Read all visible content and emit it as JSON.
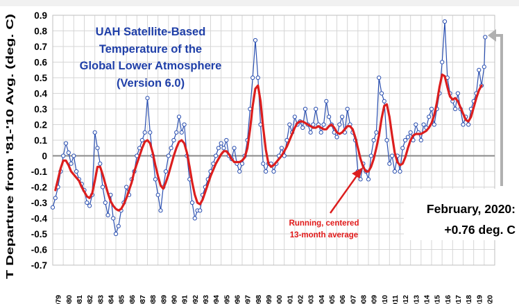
{
  "chart_data": {
    "type": "line",
    "title_lines": [
      "UAH Satellite-Based",
      "Temperature of the",
      "Global Lower Atmosphere",
      "(Version 6.0)"
    ],
    "ylabel": "T Departure from '81-'10 Avg. (deg. C)",
    "xlabel": "",
    "ylim": [
      -0.7,
      0.9
    ],
    "y_ticks": [
      "0.9",
      "0.8",
      "0.7",
      "0.6",
      "0.5",
      "0.4",
      "0.3",
      "0.2",
      "0.1",
      "0",
      "-0.1",
      "-0.2",
      "-0.3",
      "-0.4",
      "-0.5",
      "-0.6",
      "-0.7"
    ],
    "y_tick_values": [
      0.9,
      0.8,
      0.7,
      0.6,
      0.5,
      0.4,
      0.3,
      0.2,
      0.1,
      0,
      -0.1,
      -0.2,
      -0.3,
      -0.4,
      -0.5,
      -0.6,
      -0.7
    ],
    "x_ticks": [
      "1979",
      "1980",
      "1981",
      "1982",
      "1983",
      "1984",
      "1985",
      "1986",
      "1987",
      "1988",
      "1989",
      "1990",
      "1991",
      "1992",
      "1993",
      "1994",
      "1995",
      "1996",
      "1997",
      "1998",
      "1999",
      "2000",
      "2001",
      "2002",
      "2003",
      "2004",
      "2005",
      "2006",
      "2007",
      "2008",
      "2009",
      "2010",
      "2011",
      "2012",
      "2013",
      "2014",
      "2015",
      "2016",
      "2017",
      "2018",
      "2019",
      "2020"
    ],
    "x_range": [
      1979.0,
      2021.0
    ],
    "grid": true,
    "monthly_series": {
      "color": "#2a4fb0",
      "x": [
        1979.0,
        1979.25,
        1979.5,
        1979.75,
        1980.0,
        1980.25,
        1980.5,
        1980.75,
        1981.0,
        1981.25,
        1981.5,
        1981.75,
        1982.0,
        1982.25,
        1982.5,
        1982.75,
        1983.0,
        1983.25,
        1983.5,
        1983.75,
        1984.0,
        1984.25,
        1984.5,
        1984.75,
        1985.0,
        1985.25,
        1985.5,
        1985.75,
        1986.0,
        1986.25,
        1986.5,
        1986.75,
        1987.0,
        1987.25,
        1987.5,
        1987.75,
        1988.0,
        1988.25,
        1988.5,
        1988.75,
        1989.0,
        1989.25,
        1989.5,
        1989.75,
        1990.0,
        1990.25,
        1990.5,
        1990.75,
        1991.0,
        1991.25,
        1991.5,
        1991.75,
        1992.0,
        1992.25,
        1992.5,
        1992.75,
        1993.0,
        1993.25,
        1993.5,
        1993.75,
        1994.0,
        1994.25,
        1994.5,
        1994.75,
        1995.0,
        1995.25,
        1995.5,
        1995.75,
        1996.0,
        1996.25,
        1996.5,
        1996.75,
        1997.0,
        1997.25,
        1997.5,
        1997.75,
        1998.0,
        1998.25,
        1998.5,
        1998.75,
        1999.0,
        1999.25,
        1999.5,
        1999.75,
        2000.0,
        2000.25,
        2000.5,
        2000.75,
        2001.0,
        2001.25,
        2001.5,
        2001.75,
        2002.0,
        2002.25,
        2002.5,
        2002.75,
        2003.0,
        2003.25,
        2003.5,
        2003.75,
        2004.0,
        2004.25,
        2004.5,
        2004.75,
        2005.0,
        2005.25,
        2005.5,
        2005.75,
        2006.0,
        2006.25,
        2006.5,
        2006.75,
        2007.0,
        2007.25,
        2007.5,
        2007.75,
        2008.0,
        2008.25,
        2008.5,
        2008.75,
        2009.0,
        2009.25,
        2009.5,
        2009.75,
        2010.0,
        2010.25,
        2010.5,
        2010.75,
        2011.0,
        2011.25,
        2011.5,
        2011.75,
        2012.0,
        2012.25,
        2012.5,
        2012.75,
        2013.0,
        2013.25,
        2013.5,
        2013.75,
        2014.0,
        2014.25,
        2014.5,
        2014.75,
        2015.0,
        2015.25,
        2015.5,
        2015.75,
        2016.0,
        2016.25,
        2016.5,
        2016.75,
        2017.0,
        2017.25,
        2017.5,
        2017.75,
        2018.0,
        2018.25,
        2018.5,
        2018.75,
        2019.0,
        2019.25,
        2019.5,
        2019.75,
        2020.0,
        2020.1
      ],
      "values": [
        -0.33,
        -0.27,
        -0.2,
        -0.1,
        0.0,
        0.08,
        0.02,
        -0.05,
        0.0,
        -0.1,
        -0.15,
        -0.18,
        -0.22,
        -0.3,
        -0.32,
        -0.25,
        0.15,
        0.05,
        -0.05,
        -0.2,
        -0.3,
        -0.38,
        -0.25,
        -0.4,
        -0.5,
        -0.45,
        -0.35,
        -0.3,
        -0.2,
        -0.25,
        -0.15,
        -0.1,
        0.0,
        0.05,
        0.1,
        0.15,
        0.37,
        0.15,
        0.0,
        -0.15,
        -0.25,
        -0.35,
        -0.2,
        -0.1,
        0.0,
        0.05,
        0.1,
        0.15,
        0.25,
        0.15,
        0.2,
        0.0,
        -0.15,
        -0.3,
        -0.4,
        -0.35,
        -0.35,
        -0.25,
        -0.2,
        -0.15,
        -0.1,
        -0.05,
        0.0,
        0.05,
        0.08,
        0.05,
        0.1,
        0.0,
        -0.02,
        0.05,
        -0.05,
        -0.1,
        -0.05,
        0.0,
        0.1,
        0.3,
        0.5,
        0.74,
        0.5,
        0.2,
        -0.05,
        -0.1,
        -0.05,
        -0.05,
        -0.1,
        -0.05,
        0.0,
        0.05,
        0.0,
        0.1,
        0.2,
        0.15,
        0.25,
        0.2,
        0.22,
        0.18,
        0.3,
        0.2,
        0.15,
        0.2,
        0.3,
        0.2,
        0.15,
        0.2,
        0.35,
        0.25,
        0.2,
        0.15,
        0.12,
        0.2,
        0.25,
        0.15,
        0.3,
        0.2,
        0.15,
        0.1,
        -0.1,
        -0.15,
        -0.05,
        -0.1,
        -0.15,
        0.0,
        0.1,
        0.15,
        0.5,
        0.4,
        0.35,
        0.1,
        -0.05,
        0.0,
        -0.1,
        0.0,
        -0.1,
        0.05,
        0.1,
        0.12,
        0.15,
        0.1,
        0.2,
        0.15,
        0.1,
        0.2,
        0.18,
        0.25,
        0.3,
        0.2,
        0.3,
        0.4,
        0.6,
        0.86,
        0.5,
        0.4,
        0.35,
        0.3,
        0.4,
        0.3,
        0.2,
        0.25,
        0.2,
        0.3,
        0.35,
        0.4,
        0.55,
        0.45,
        0.57,
        0.76
      ]
    },
    "running_average": {
      "name": "Running, centered 13-month average",
      "color": "#dc1e1e",
      "x": [
        1979.25,
        1979.5,
        1979.75,
        1980.0,
        1980.25,
        1980.5,
        1980.75,
        1981.0,
        1981.25,
        1981.5,
        1981.75,
        1982.0,
        1982.25,
        1982.5,
        1982.75,
        1983.0,
        1983.25,
        1983.5,
        1983.75,
        1984.0,
        1984.25,
        1984.5,
        1984.75,
        1985.0,
        1985.25,
        1985.5,
        1985.75,
        1986.0,
        1986.25,
        1986.5,
        1986.75,
        1987.0,
        1987.25,
        1987.5,
        1987.75,
        1988.0,
        1988.25,
        1988.5,
        1988.75,
        1989.0,
        1989.25,
        1989.5,
        1989.75,
        1990.0,
        1990.25,
        1990.5,
        1990.75,
        1991.0,
        1991.25,
        1991.5,
        1991.75,
        1992.0,
        1992.25,
        1992.5,
        1992.75,
        1993.0,
        1993.25,
        1993.5,
        1993.75,
        1994.0,
        1994.25,
        1994.5,
        1994.75,
        1995.0,
        1995.25,
        1995.5,
        1995.75,
        1996.0,
        1996.25,
        1996.5,
        1996.75,
        1997.0,
        1997.25,
        1997.5,
        1997.75,
        1998.0,
        1998.25,
        1998.5,
        1998.75,
        1999.0,
        1999.25,
        1999.5,
        1999.75,
        2000.0,
        2000.25,
        2000.5,
        2000.75,
        2001.0,
        2001.25,
        2001.5,
        2001.75,
        2002.0,
        2002.25,
        2002.5,
        2002.75,
        2003.0,
        2003.25,
        2003.5,
        2003.75,
        2004.0,
        2004.25,
        2004.5,
        2004.75,
        2005.0,
        2005.25,
        2005.5,
        2005.75,
        2006.0,
        2006.25,
        2006.5,
        2006.75,
        2007.0,
        2007.25,
        2007.5,
        2007.75,
        2008.0,
        2008.25,
        2008.5,
        2008.75,
        2009.0,
        2009.25,
        2009.5,
        2009.75,
        2010.0,
        2010.25,
        2010.5,
        2010.75,
        2011.0,
        2011.25,
        2011.5,
        2011.75,
        2012.0,
        2012.25,
        2012.5,
        2012.75,
        2013.0,
        2013.25,
        2013.5,
        2013.75,
        2014.0,
        2014.25,
        2014.5,
        2014.75,
        2015.0,
        2015.25,
        2015.5,
        2015.75,
        2016.0,
        2016.25,
        2016.5,
        2016.75,
        2017.0,
        2017.25,
        2017.5,
        2017.75,
        2018.0,
        2018.25,
        2018.5,
        2018.75,
        2019.0,
        2019.25,
        2019.5,
        2019.75
      ],
      "values": [
        -0.22,
        -0.15,
        -0.08,
        -0.03,
        -0.03,
        -0.06,
        -0.1,
        -0.12,
        -0.14,
        -0.16,
        -0.2,
        -0.23,
        -0.26,
        -0.27,
        -0.24,
        -0.16,
        -0.07,
        -0.07,
        -0.12,
        -0.18,
        -0.24,
        -0.29,
        -0.32,
        -0.34,
        -0.35,
        -0.34,
        -0.31,
        -0.27,
        -0.22,
        -0.17,
        -0.1,
        -0.05,
        0.0,
        0.05,
        0.09,
        0.1,
        0.08,
        0.02,
        -0.06,
        -0.13,
        -0.19,
        -0.21,
        -0.17,
        -0.12,
        -0.06,
        0.0,
        0.05,
        0.09,
        0.1,
        0.08,
        0.02,
        -0.07,
        -0.17,
        -0.25,
        -0.3,
        -0.31,
        -0.28,
        -0.23,
        -0.18,
        -0.13,
        -0.09,
        -0.05,
        -0.02,
        0.01,
        0.03,
        0.03,
        0.01,
        -0.02,
        -0.04,
        -0.04,
        -0.04,
        -0.03,
        -0.01,
        0.05,
        0.17,
        0.32,
        0.43,
        0.45,
        0.35,
        0.18,
        0.04,
        -0.05,
        -0.07,
        -0.06,
        -0.04,
        -0.02,
        0.0,
        0.03,
        0.06,
        0.1,
        0.14,
        0.18,
        0.21,
        0.22,
        0.22,
        0.21,
        0.2,
        0.19,
        0.18,
        0.18,
        0.19,
        0.18,
        0.17,
        0.17,
        0.19,
        0.2,
        0.18,
        0.15,
        0.14,
        0.15,
        0.17,
        0.19,
        0.19,
        0.17,
        0.12,
        0.05,
        -0.02,
        -0.07,
        -0.1,
        -0.1,
        -0.07,
        -0.02,
        0.05,
        0.13,
        0.24,
        0.32,
        0.33,
        0.25,
        0.13,
        0.02,
        -0.04,
        -0.06,
        -0.05,
        -0.01,
        0.05,
        0.1,
        0.13,
        0.14,
        0.14,
        0.14,
        0.15,
        0.16,
        0.18,
        0.21,
        0.26,
        0.34,
        0.44,
        0.52,
        0.51,
        0.44,
        0.38,
        0.36,
        0.37,
        0.35,
        0.31,
        0.27,
        0.23,
        0.22,
        0.25,
        0.31,
        0.37,
        0.42,
        0.45
      ]
    },
    "annotations": {
      "running_line1": "Running, centered",
      "running_line2": "13-month average",
      "latest_line1": "February, 2020:",
      "latest_line2": "+0.76 deg. C"
    }
  }
}
